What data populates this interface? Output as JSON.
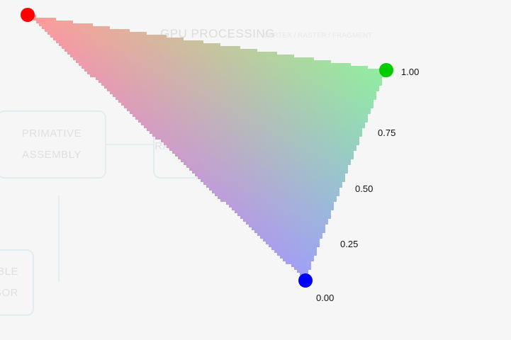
{
  "background": {
    "title": "GPU PROCESSING",
    "subtitle": "VERTEX / RASTER / FRAGMENT",
    "boxes": [
      {
        "id": "primitive-assembly",
        "lines": [
          "PRIMATIVE",
          "ASSEMBLY"
        ]
      },
      {
        "id": "rasterization",
        "lines": [
          "",
          "RASTERIZATION"
        ]
      },
      {
        "id": "programmable-processor",
        "lines": [
          "ABLE",
          "SSOR"
        ]
      }
    ]
  },
  "triangle": {
    "vertex_colors": {
      "red": "#ff0000",
      "green": "#00cc00",
      "blue": "#0000ff"
    },
    "gradient_colors": {
      "red": "#ff9a9a",
      "green": "#90eea0",
      "blue": "#9f9ff7"
    },
    "grid_cells_along_edge": 25,
    "cell_gap_color": "#ffffff"
  },
  "scale_labels": [
    "1.00",
    "0.75",
    "0.50",
    "0.25",
    "0.00"
  ]
}
